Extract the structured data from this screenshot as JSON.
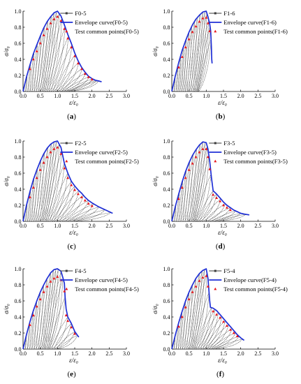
{
  "colors": {
    "envelope": "#1f2fd6",
    "cycles": "#3a3a3a",
    "test_points": "#e8161b",
    "axes": "#000000"
  },
  "chart_data": [
    {
      "type": "line",
      "panel_label": [
        "(",
        "a",
        ")"
      ],
      "xlabel": "ε/ε₀",
      "ylabel": "σ/σ₀",
      "xlim": [
        0,
        3.0
      ],
      "ylim": [
        0,
        1.0
      ],
      "x_ticks": [
        "0.0",
        "0.5",
        "1.0",
        "1.5",
        "2.0",
        "2.5",
        "3.0"
      ],
      "y_ticks": [
        "0.0",
        "0.2",
        "0.4",
        "0.6",
        "0.8",
        "1.0"
      ],
      "legend": [
        "F0-5",
        "Envelope curve(F0-5)",
        "Test common points(F0-5)"
      ],
      "envelope": [
        [
          0,
          0
        ],
        [
          0.1,
          0.18
        ],
        [
          0.2,
          0.33
        ],
        [
          0.3,
          0.47
        ],
        [
          0.4,
          0.58
        ],
        [
          0.5,
          0.69
        ],
        [
          0.6,
          0.79
        ],
        [
          0.7,
          0.87
        ],
        [
          0.8,
          0.93
        ],
        [
          0.9,
          0.98
        ],
        [
          1.0,
          1.0
        ],
        [
          1.1,
          0.94
        ],
        [
          1.2,
          0.83
        ],
        [
          1.3,
          0.71
        ],
        [
          1.4,
          0.6
        ],
        [
          1.5,
          0.48
        ],
        [
          1.6,
          0.38
        ],
        [
          1.7,
          0.3
        ],
        [
          1.8,
          0.24
        ],
        [
          1.9,
          0.19
        ],
        [
          2.0,
          0.16
        ],
        [
          2.1,
          0.14
        ],
        [
          2.2,
          0.13
        ],
        [
          2.28,
          0.12
        ]
      ],
      "cycle_unload_x": [
        0.12,
        0.22,
        0.32,
        0.42,
        0.52,
        0.62,
        0.72,
        0.82,
        0.9,
        0.97,
        1.05,
        1.13,
        1.22,
        1.32,
        1.42,
        1.52,
        1.62,
        1.72,
        1.82,
        1.92,
        2.02,
        2.12,
        2.2
      ],
      "residual_ratio": 0.62,
      "test_points": [
        [
          0.2,
          0.28
        ],
        [
          0.3,
          0.4
        ],
        [
          0.4,
          0.5
        ],
        [
          0.5,
          0.6
        ],
        [
          0.6,
          0.7
        ],
        [
          0.7,
          0.78
        ],
        [
          0.8,
          0.85
        ],
        [
          0.9,
          0.9
        ],
        [
          1.0,
          0.93
        ],
        [
          1.1,
          0.88
        ],
        [
          1.2,
          0.78
        ],
        [
          1.3,
          0.66
        ],
        [
          1.4,
          0.55
        ],
        [
          1.5,
          0.44
        ],
        [
          1.6,
          0.35
        ],
        [
          1.7,
          0.28
        ],
        [
          1.8,
          0.22
        ],
        [
          1.9,
          0.18
        ],
        [
          2.0,
          0.15
        ]
      ]
    },
    {
      "type": "line",
      "panel_label": [
        "(",
        "b",
        ")"
      ],
      "xlabel": "ε/ε₀",
      "ylabel": "σ/σ₀",
      "xlim": [
        0,
        3.0
      ],
      "ylim": [
        0,
        1.0
      ],
      "x_ticks": [
        "0.0",
        "0.5",
        "1.0",
        "1.5",
        "2.0",
        "2.5",
        "3.0"
      ],
      "y_ticks": [
        "0.0",
        "0.2",
        "0.4",
        "0.6",
        "0.8",
        "1.0"
      ],
      "legend": [
        "F1-6",
        "Envelope curve(F1-6)",
        "Test common points(F1-6)"
      ],
      "envelope": [
        [
          0,
          0
        ],
        [
          0.1,
          0.19
        ],
        [
          0.2,
          0.36
        ],
        [
          0.3,
          0.51
        ],
        [
          0.4,
          0.63
        ],
        [
          0.5,
          0.74
        ],
        [
          0.6,
          0.83
        ],
        [
          0.7,
          0.9
        ],
        [
          0.8,
          0.95
        ],
        [
          0.9,
          0.99
        ],
        [
          1.0,
          1.0
        ],
        [
          1.05,
          0.93
        ],
        [
          1.1,
          0.84
        ],
        [
          1.13,
          0.75
        ],
        [
          1.15,
          0.55
        ],
        [
          1.16,
          0.4
        ],
        [
          1.17,
          0.35
        ]
      ],
      "cycle_unload_x": [
        0.1,
        0.18,
        0.26,
        0.34,
        0.42,
        0.5,
        0.58,
        0.66,
        0.74,
        0.82,
        0.9,
        0.96,
        1.02,
        1.07,
        1.11,
        1.14
      ],
      "residual_ratio": 0.68,
      "test_points": [
        [
          0.2,
          0.3
        ],
        [
          0.3,
          0.43
        ],
        [
          0.4,
          0.55
        ],
        [
          0.5,
          0.65
        ],
        [
          0.6,
          0.74
        ],
        [
          0.7,
          0.81
        ],
        [
          0.8,
          0.87
        ],
        [
          0.9,
          0.91
        ],
        [
          1.0,
          0.92
        ],
        [
          1.05,
          0.85
        ],
        [
          1.1,
          0.75
        ]
      ]
    },
    {
      "type": "line",
      "panel_label": [
        "(",
        "c",
        ")"
      ],
      "xlabel": "ε/ε₀",
      "ylabel": "σ/σ₀",
      "xlim": [
        0,
        3.0
      ],
      "ylim": [
        0,
        1.0
      ],
      "x_ticks": [
        "0.0",
        "0.5",
        "1.0",
        "1.5",
        "2.0",
        "2.5",
        "3.0"
      ],
      "y_ticks": [
        "0.0",
        "0.2",
        "0.4",
        "0.6",
        "0.8",
        "1.0"
      ],
      "legend": [
        "F2-5",
        "Envelope curve(F2-5)",
        "Test common points(F2-5)"
      ],
      "envelope": [
        [
          0,
          0
        ],
        [
          0.1,
          0.2
        ],
        [
          0.2,
          0.37
        ],
        [
          0.3,
          0.52
        ],
        [
          0.4,
          0.64
        ],
        [
          0.5,
          0.75
        ],
        [
          0.6,
          0.84
        ],
        [
          0.7,
          0.91
        ],
        [
          0.8,
          0.96
        ],
        [
          0.9,
          0.99
        ],
        [
          1.0,
          1.0
        ],
        [
          1.1,
          0.92
        ],
        [
          1.2,
          0.72
        ],
        [
          1.3,
          0.6
        ],
        [
          1.4,
          0.5
        ],
        [
          1.5,
          0.44
        ],
        [
          1.6,
          0.39
        ],
        [
          1.7,
          0.35
        ],
        [
          1.8,
          0.3
        ],
        [
          1.9,
          0.26
        ],
        [
          2.0,
          0.23
        ],
        [
          2.2,
          0.18
        ],
        [
          2.4,
          0.14
        ],
        [
          2.6,
          0.1
        ]
      ],
      "cycle_unload_x": [
        0.12,
        0.22,
        0.32,
        0.42,
        0.52,
        0.62,
        0.72,
        0.82,
        0.9,
        0.97,
        1.05,
        1.12,
        1.2,
        1.3,
        1.4,
        1.5,
        1.62,
        1.75,
        1.9,
        2.05,
        2.2,
        2.38,
        2.55
      ],
      "residual_ratio": 0.6,
      "test_points": [
        [
          0.2,
          0.3
        ],
        [
          0.3,
          0.42
        ],
        [
          0.4,
          0.54
        ],
        [
          0.5,
          0.64
        ],
        [
          0.6,
          0.73
        ],
        [
          0.7,
          0.8
        ],
        [
          0.8,
          0.86
        ],
        [
          0.9,
          0.9
        ],
        [
          1.0,
          0.92
        ],
        [
          1.1,
          0.84
        ],
        [
          1.2,
          0.66
        ],
        [
          1.3,
          0.54
        ],
        [
          1.4,
          0.45
        ],
        [
          1.5,
          0.39
        ],
        [
          1.6,
          0.34
        ],
        [
          1.7,
          0.3
        ],
        [
          1.8,
          0.26
        ],
        [
          1.9,
          0.22
        ],
        [
          2.0,
          0.19
        ]
      ]
    },
    {
      "type": "line",
      "panel_label": [
        "(",
        "d",
        ")"
      ],
      "xlabel": "ε/ε₀",
      "ylabel": "σ/σ₀",
      "xlim": [
        0,
        3.0
      ],
      "ylim": [
        0,
        1.0
      ],
      "x_ticks": [
        "0.0",
        "0.5",
        "1.0",
        "1.5",
        "2.0",
        "2.5",
        "3.0"
      ],
      "y_ticks": [
        "0.0",
        "0.2",
        "0.4",
        "0.6",
        "0.8",
        "1.0"
      ],
      "legend": [
        "F3-5",
        "Envelope curve(F3-5)",
        "Test common points(F3-5)"
      ],
      "envelope": [
        [
          0,
          0
        ],
        [
          0.1,
          0.18
        ],
        [
          0.2,
          0.34
        ],
        [
          0.3,
          0.49
        ],
        [
          0.4,
          0.62
        ],
        [
          0.5,
          0.73
        ],
        [
          0.6,
          0.82
        ],
        [
          0.7,
          0.89
        ],
        [
          0.8,
          0.95
        ],
        [
          0.9,
          0.99
        ],
        [
          1.0,
          0.98
        ],
        [
          1.05,
          0.9
        ],
        [
          1.1,
          0.75
        ],
        [
          1.15,
          0.55
        ],
        [
          1.2,
          0.38
        ],
        [
          1.3,
          0.34
        ],
        [
          1.4,
          0.29
        ],
        [
          1.5,
          0.24
        ],
        [
          1.6,
          0.2
        ],
        [
          1.7,
          0.17
        ],
        [
          1.8,
          0.14
        ],
        [
          1.9,
          0.12
        ],
        [
          2.0,
          0.1
        ],
        [
          2.1,
          0.09
        ],
        [
          2.25,
          0.08
        ]
      ],
      "cycle_unload_x": [
        0.12,
        0.22,
        0.32,
        0.42,
        0.52,
        0.62,
        0.72,
        0.82,
        0.9,
        0.97,
        1.03,
        1.08,
        1.14,
        1.2,
        1.3,
        1.42,
        1.55,
        1.7,
        1.85,
        2.0,
        2.15
      ],
      "residual_ratio": 0.62,
      "test_points": [
        [
          0.2,
          0.28
        ],
        [
          0.3,
          0.42
        ],
        [
          0.4,
          0.54
        ],
        [
          0.5,
          0.64
        ],
        [
          0.6,
          0.72
        ],
        [
          0.7,
          0.8
        ],
        [
          0.8,
          0.86
        ],
        [
          0.9,
          0.9
        ],
        [
          1.0,
          0.9
        ],
        [
          1.05,
          0.8
        ],
        [
          1.1,
          0.65
        ],
        [
          1.2,
          0.33
        ],
        [
          1.3,
          0.29
        ],
        [
          1.4,
          0.25
        ],
        [
          1.5,
          0.2
        ],
        [
          1.6,
          0.17
        ],
        [
          1.7,
          0.14
        ]
      ]
    },
    {
      "type": "line",
      "panel_label": [
        "(",
        "e",
        ")"
      ],
      "xlabel": "ε/ε₀",
      "ylabel": "σ/σ₀",
      "xlim": [
        0,
        3.0
      ],
      "ylim": [
        0,
        1.0
      ],
      "x_ticks": [
        "0.0",
        "0.5",
        "1.0",
        "1.5",
        "2.0",
        "2.5",
        "3.0"
      ],
      "y_ticks": [
        "0.0",
        "0.2",
        "0.4",
        "0.6",
        "0.8",
        "1.0"
      ],
      "legend": [
        "F4-5",
        "Envelope curve(F4-5)",
        "Test common points(F4-5)"
      ],
      "envelope": [
        [
          0,
          0
        ],
        [
          0.1,
          0.18
        ],
        [
          0.2,
          0.34
        ],
        [
          0.3,
          0.48
        ],
        [
          0.4,
          0.6
        ],
        [
          0.5,
          0.71
        ],
        [
          0.6,
          0.8
        ],
        [
          0.7,
          0.88
        ],
        [
          0.8,
          0.95
        ],
        [
          0.9,
          0.99
        ],
        [
          1.0,
          1.0
        ],
        [
          1.1,
          0.97
        ],
        [
          1.15,
          0.9
        ],
        [
          1.2,
          0.82
        ],
        [
          1.22,
          0.65
        ],
        [
          1.25,
          0.5
        ],
        [
          1.3,
          0.4
        ],
        [
          1.4,
          0.32
        ],
        [
          1.5,
          0.22
        ],
        [
          1.6,
          0.16
        ],
        [
          1.62,
          0.15
        ]
      ],
      "cycle_unload_x": [
        0.1,
        0.2,
        0.3,
        0.4,
        0.5,
        0.6,
        0.7,
        0.8,
        0.88,
        0.95,
        1.02,
        1.1,
        1.16,
        1.22,
        1.3,
        1.4,
        1.5,
        1.58
      ],
      "residual_ratio": 0.64,
      "test_points": [
        [
          0.2,
          0.3
        ],
        [
          0.3,
          0.42
        ],
        [
          0.4,
          0.53
        ],
        [
          0.5,
          0.62
        ],
        [
          0.6,
          0.71
        ],
        [
          0.7,
          0.78
        ],
        [
          0.8,
          0.84
        ],
        [
          0.9,
          0.88
        ],
        [
          1.0,
          0.9
        ],
        [
          1.1,
          0.86
        ],
        [
          1.2,
          0.72
        ],
        [
          1.25,
          0.42
        ],
        [
          1.3,
          0.35
        ],
        [
          1.4,
          0.27
        ],
        [
          1.5,
          0.19
        ]
      ]
    },
    {
      "type": "line",
      "panel_label": [
        "(",
        "f",
        ")"
      ],
      "xlabel": "ε/ε₀",
      "ylabel": "σ/σ₀",
      "xlim": [
        0,
        3.0
      ],
      "ylim": [
        0,
        1.0
      ],
      "x_ticks": [
        "0.0",
        "0.5",
        "1.0",
        "1.5",
        "2.0",
        "2.5",
        "3.0"
      ],
      "y_ticks": [
        "0.0",
        "0.2",
        "0.4",
        "0.6",
        "0.8",
        "1.0"
      ],
      "legend": [
        "F5-4",
        "Envelope curve(F5-4)",
        "Test common points(F5-4)"
      ],
      "envelope": [
        [
          0,
          0
        ],
        [
          0.1,
          0.17
        ],
        [
          0.2,
          0.33
        ],
        [
          0.3,
          0.47
        ],
        [
          0.4,
          0.6
        ],
        [
          0.5,
          0.71
        ],
        [
          0.6,
          0.8
        ],
        [
          0.7,
          0.88
        ],
        [
          0.8,
          0.94
        ],
        [
          0.9,
          0.98
        ],
        [
          1.0,
          1.0
        ],
        [
          1.05,
          0.88
        ],
        [
          1.1,
          0.6
        ],
        [
          1.12,
          0.52
        ],
        [
          1.2,
          0.51
        ],
        [
          1.3,
          0.48
        ],
        [
          1.4,
          0.43
        ],
        [
          1.5,
          0.38
        ],
        [
          1.6,
          0.33
        ],
        [
          1.7,
          0.28
        ],
        [
          1.8,
          0.23
        ],
        [
          1.9,
          0.18
        ],
        [
          2.0,
          0.14
        ],
        [
          2.1,
          0.11
        ]
      ],
      "cycle_unload_x": [
        0.1,
        0.2,
        0.3,
        0.4,
        0.5,
        0.6,
        0.7,
        0.8,
        0.88,
        0.95,
        1.02,
        1.08,
        1.15,
        1.25,
        1.35,
        1.45,
        1.55,
        1.65,
        1.75,
        1.85,
        1.95,
        2.05
      ],
      "residual_ratio": 0.62,
      "test_points": [
        [
          0.2,
          0.28
        ],
        [
          0.3,
          0.4
        ],
        [
          0.4,
          0.52
        ],
        [
          0.5,
          0.62
        ],
        [
          0.6,
          0.71
        ],
        [
          0.7,
          0.78
        ],
        [
          0.8,
          0.85
        ],
        [
          0.9,
          0.89
        ],
        [
          1.0,
          0.91
        ],
        [
          1.05,
          0.78
        ],
        [
          1.2,
          0.47
        ],
        [
          1.3,
          0.43
        ],
        [
          1.4,
          0.39
        ],
        [
          1.5,
          0.34
        ],
        [
          1.6,
          0.29
        ],
        [
          1.7,
          0.24
        ],
        [
          1.8,
          0.2
        ],
        [
          1.9,
          0.16
        ]
      ]
    }
  ]
}
